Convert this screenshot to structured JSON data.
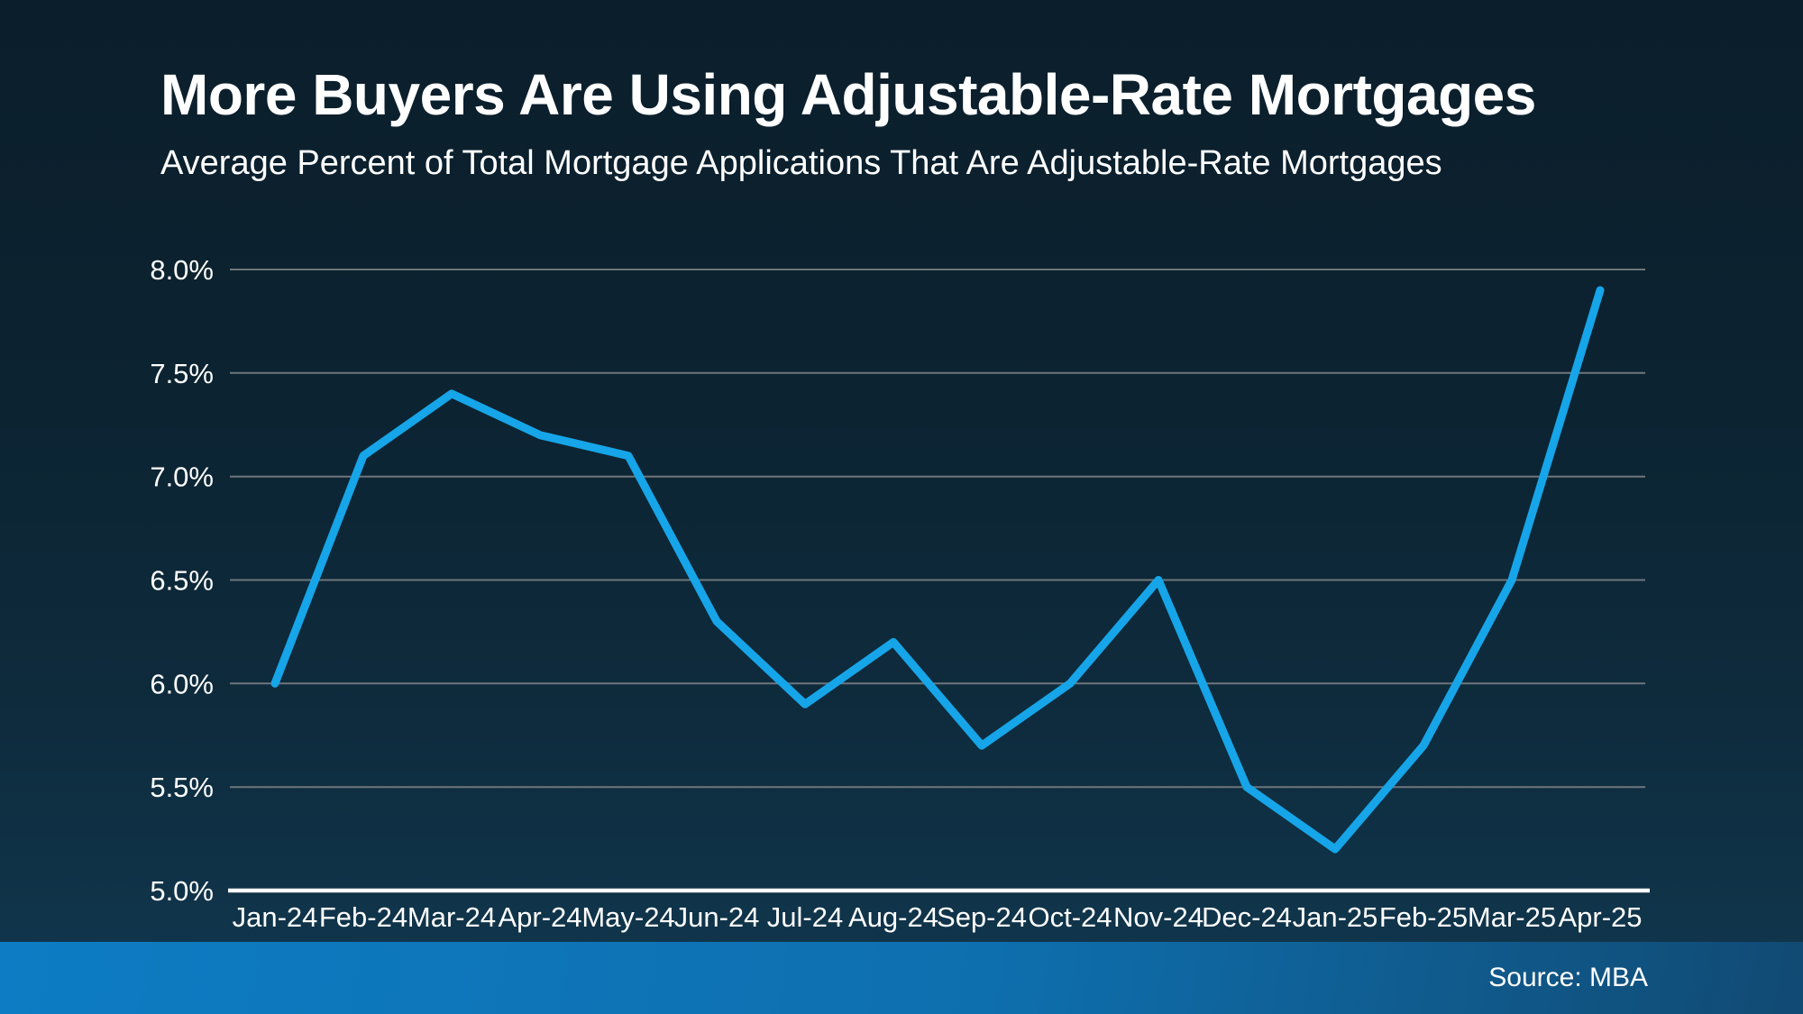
{
  "header": {
    "title": "More Buyers Are Using Adjustable-Rate Mortgages",
    "subtitle": "Average Percent of Total Mortgage Applications That Are Adjustable-Rate Mortgages"
  },
  "footer": {
    "source": "Source: MBA"
  },
  "colors": {
    "background_top": "#0b1e2b",
    "background_bottom": "#113850",
    "line": "#16a5e8",
    "gridline": "#6e767c",
    "axis_line": "#ffffff",
    "label_text": "#ffffff",
    "footer_left": "#0d7cc4",
    "footer_right": "#114a73"
  },
  "chart_data": {
    "type": "line",
    "title": "More Buyers Are Using Adjustable-Rate Mortgages",
    "subtitle": "Average Percent of Total Mortgage Applications That Are Adjustable-Rate Mortgages",
    "series_name": "Average percent of total mortgage applications that are adjustable-rate mortgages",
    "categories": [
      "Jan-24",
      "Feb-24",
      "Mar-24",
      "Apr-24",
      "May-24",
      "Jun-24",
      "Jul-24",
      "Aug-24",
      "Sep-24",
      "Oct-24",
      "Nov-24",
      "Dec-24",
      "Jan-25",
      "Feb-25",
      "Mar-25",
      "Apr-25"
    ],
    "values": [
      6.0,
      7.1,
      7.4,
      7.2,
      7.1,
      6.3,
      5.9,
      6.2,
      5.7,
      6.0,
      6.5,
      5.5,
      5.2,
      5.7,
      6.5,
      7.9
    ],
    "ylim": [
      5.0,
      8.0
    ],
    "y_ticks": [
      {
        "label": "8.0%",
        "value": 8.0
      },
      {
        "label": "7.5%",
        "value": 7.5
      },
      {
        "label": "7.0%",
        "value": 7.0
      },
      {
        "label": "6.5%",
        "value": 6.5
      },
      {
        "label": "6.0%",
        "value": 6.0
      },
      {
        "label": "5.5%",
        "value": 5.5
      },
      {
        "label": "5.0%",
        "value": 5.0
      }
    ],
    "xlabel": "",
    "ylabel": "",
    "grid": true,
    "legend": false,
    "source": "Source: MBA"
  }
}
